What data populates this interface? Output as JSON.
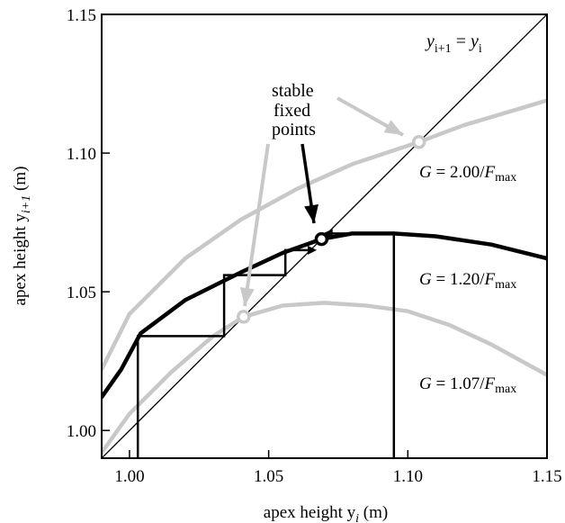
{
  "chart_data": {
    "type": "line",
    "xlabel": "apex height y",
    "xlabel_sub": "i",
    "xlabel_unit": " (m)",
    "ylabel": "apex height y",
    "ylabel_sub": "i+1",
    "ylabel_unit": " (m)",
    "xlim": [
      0.99,
      1.15
    ],
    "ylim": [
      0.99,
      1.15
    ],
    "xticks": [
      1.0,
      1.05,
      1.1,
      1.15
    ],
    "yticks": [
      1.0,
      1.05,
      1.1,
      1.15
    ],
    "xtick_labels": [
      "1.00",
      "1.05",
      "1.10",
      "1.15"
    ],
    "ytick_labels": [
      "1.00",
      "1.05",
      "1.10",
      "1.15"
    ],
    "grid": false,
    "colors": {
      "gray": "#c8c8c8",
      "black": "#000000"
    },
    "identity_label": {
      "y": "y",
      "sub1": "i+1",
      "eq": " = ",
      "y2": "y",
      "sub2": "i"
    },
    "annotation": [
      "stable",
      "fixed",
      "points"
    ],
    "series": [
      {
        "label_G": "G",
        "label_value": " = 2.00/",
        "label_F": "F",
        "label_sub": "max",
        "color": "#c8c8c8",
        "x": [
          0.99,
          1.0,
          1.02,
          1.04,
          1.06,
          1.08,
          1.104,
          1.12,
          1.14,
          1.15
        ],
        "y": [
          1.022,
          1.042,
          1.062,
          1.076,
          1.087,
          1.096,
          1.104,
          1.11,
          1.116,
          1.119
        ]
      },
      {
        "label_G": "G",
        "label_value": " = 1.20/",
        "label_F": "F",
        "label_sub": "max",
        "color": "#000000",
        "x": [
          0.99,
          0.997,
          1.004,
          1.02,
          1.04,
          1.055,
          1.069,
          1.08,
          1.095,
          1.11,
          1.13,
          1.15
        ],
        "y": [
          1.012,
          1.022,
          1.035,
          1.047,
          1.057,
          1.064,
          1.069,
          1.071,
          1.071,
          1.07,
          1.067,
          1.062
        ]
      },
      {
        "label_G": "G",
        "label_value": " = 1.07/",
        "label_F": "F",
        "label_sub": "max",
        "color": "#c8c8c8",
        "x": [
          0.99,
          1.0,
          1.015,
          1.03,
          1.041,
          1.055,
          1.07,
          1.085,
          1.1,
          1.115,
          1.13,
          1.15
        ],
        "y": [
          0.992,
          1.006,
          1.021,
          1.034,
          1.041,
          1.045,
          1.046,
          1.045,
          1.043,
          1.038,
          1.031,
          1.02
        ]
      }
    ],
    "fixed_points": [
      {
        "x": 1.104,
        "y": 1.104,
        "color": "#c8c8c8"
      },
      {
        "x": 1.069,
        "y": 1.069,
        "color": "#000000"
      },
      {
        "x": 1.041,
        "y": 1.041,
        "color": "#c8c8c8"
      }
    ],
    "cobweb_lower": {
      "x0": 1.003,
      "points": [
        [
          1.003,
          1.034
        ],
        [
          1.034,
          1.034
        ],
        [
          1.034,
          1.056
        ],
        [
          1.056,
          1.056
        ],
        [
          1.056,
          1.065
        ],
        [
          1.065,
          1.065
        ]
      ]
    },
    "cobweb_upper": {
      "x0": 1.095,
      "points": [
        [
          1.095,
          1.071
        ],
        [
          1.072,
          1.071
        ]
      ]
    }
  }
}
